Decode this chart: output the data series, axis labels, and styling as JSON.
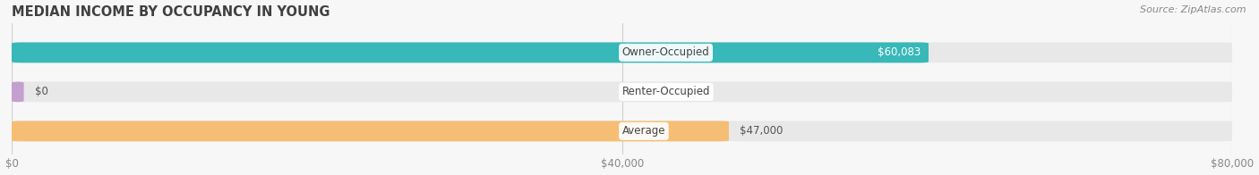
{
  "title": "MEDIAN INCOME BY OCCUPANCY IN YOUNG",
  "source": "Source: ZipAtlas.com",
  "categories": [
    "Owner-Occupied",
    "Renter-Occupied",
    "Average"
  ],
  "values": [
    60083,
    0,
    47000
  ],
  "bar_colors": [
    "#38b8b8",
    "#c4a0d0",
    "#f5be74"
  ],
  "bar_bg_color": "#e8e8e8",
  "value_labels": [
    "$60,083",
    "$0",
    "$47,000"
  ],
  "value_label_inside": [
    true,
    false,
    false
  ],
  "xlim": [
    0,
    80000
  ],
  "xticks": [
    0,
    40000,
    80000
  ],
  "xtick_labels": [
    "$0",
    "$40,000",
    "$80,000"
  ],
  "title_fontsize": 10.5,
  "label_fontsize": 8.5,
  "tick_fontsize": 8.5,
  "source_fontsize": 8,
  "bar_height": 0.52,
  "background_color": "#f7f7f7",
  "title_color": "#404040",
  "label_color": "#444444",
  "value_label_white": "#ffffff",
  "value_label_dark": "#555555",
  "source_color": "#888888",
  "grid_color": "#d0d0d0"
}
